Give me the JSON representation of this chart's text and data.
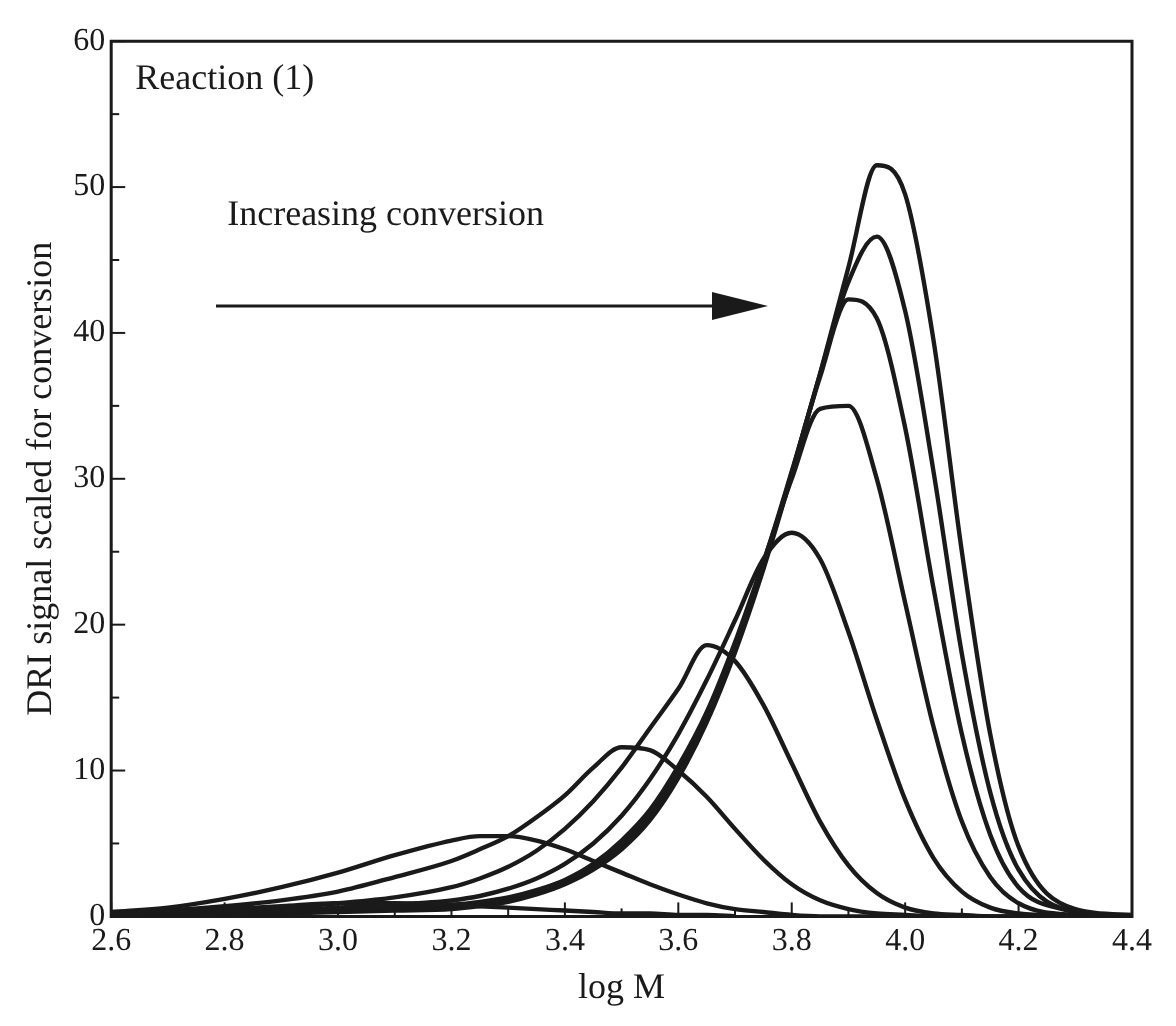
{
  "chart_data": {
    "type": "line",
    "xlabel": "log M",
    "ylabel": "DRI signal scaled for conversion",
    "annotations": [
      "Reaction (1)",
      "Increasing conversion"
    ],
    "x": [
      2.6,
      2.7,
      2.8,
      2.9,
      3.0,
      3.1,
      3.2,
      3.25,
      3.3,
      3.35,
      3.4,
      3.45,
      3.5,
      3.55,
      3.6,
      3.65,
      3.7,
      3.75,
      3.8,
      3.85,
      3.9,
      3.95,
      4.0,
      4.05,
      4.1,
      4.15,
      4.2,
      4.3,
      4.4
    ],
    "series": [
      {
        "color": "#1a1a1a",
        "values": [
          0.2,
          0.3,
          0.5,
          0.7,
          0.9,
          0.9,
          0.8,
          0.7,
          0.6,
          0.5,
          0.4,
          0.3,
          0.2,
          0.2,
          0.1,
          0.1,
          0,
          null,
          null,
          null,
          null,
          null,
          null,
          null,
          null,
          null,
          null,
          null,
          null
        ]
      },
      {
        "color": "#1a1a1a",
        "values": [
          0.3,
          0.6,
          1.2,
          2.0,
          3.0,
          4.2,
          5.2,
          5.5,
          5.5,
          5.2,
          4.6,
          3.8,
          3.0,
          2.2,
          1.5,
          0.9,
          0.5,
          0.3,
          0.1,
          0,
          0,
          0,
          null,
          null,
          null,
          null,
          null,
          null,
          null
        ]
      },
      {
        "color": "#1a1a1a",
        "values": [
          0.2,
          0.4,
          0.7,
          1.1,
          1.7,
          2.7,
          3.8,
          4.6,
          5.5,
          6.8,
          8.3,
          10.2,
          11.6,
          11.4,
          10.0,
          8.2,
          6.0,
          3.9,
          2.2,
          1.1,
          0.5,
          0.2,
          0.1,
          0,
          0,
          0,
          0,
          0,
          0
        ]
      },
      {
        "color": "#1a1a1a",
        "values": [
          0.1,
          0.2,
          0.4,
          0.6,
          0.9,
          1.3,
          2.0,
          2.6,
          3.4,
          4.5,
          6.0,
          7.9,
          10.2,
          12.9,
          15.6,
          18.6,
          17.5,
          14.5,
          10.5,
          6.5,
          3.5,
          1.6,
          0.6,
          0.2,
          0.1,
          0,
          0,
          null,
          null
        ]
      },
      {
        "color": "#1a1a1a",
        "values": [
          0.1,
          0.1,
          0.2,
          0.4,
          0.6,
          0.8,
          1.1,
          1.4,
          1.9,
          2.6,
          3.6,
          5.0,
          6.9,
          9.4,
          12.5,
          16.2,
          20.3,
          24.5,
          26.3,
          24.5,
          19.5,
          13.5,
          8.0,
          4.0,
          1.7,
          0.6,
          0.2,
          0,
          null
        ]
      },
      {
        "color": "#1a1a1a",
        "values": [
          0,
          0.1,
          0.2,
          0.3,
          0.5,
          0.6,
          0.8,
          1.0,
          1.3,
          1.8,
          2.5,
          3.6,
          5.2,
          7.3,
          10.3,
          14.0,
          18.8,
          24.3,
          30.0,
          34.8,
          35.0,
          30.0,
          21.5,
          13.0,
          6.5,
          2.7,
          0.9,
          0.1,
          0
        ]
      },
      {
        "color": "#1a1a1a",
        "values": [
          0,
          0.1,
          0.2,
          0.3,
          0.4,
          0.5,
          0.7,
          0.9,
          1.2,
          1.7,
          2.4,
          3.4,
          4.9,
          7.0,
          9.9,
          13.7,
          18.5,
          24.2,
          30.5,
          37.0,
          42.3,
          41.0,
          33.5,
          22.5,
          12.5,
          5.6,
          2.0,
          0.2,
          null
        ]
      },
      {
        "color": "#1a1a1a",
        "values": [
          0,
          0.1,
          0.2,
          0.3,
          0.4,
          0.5,
          0.6,
          0.8,
          1.1,
          1.6,
          2.3,
          3.3,
          4.7,
          6.8,
          9.7,
          13.5,
          18.3,
          24.0,
          30.4,
          37.2,
          43.5,
          46.6,
          41.5,
          30.5,
          18.0,
          8.5,
          3.2,
          0.3,
          0
        ]
      },
      {
        "color": "#1a1a1a",
        "values": [
          0,
          0.1,
          0.1,
          0.2,
          0.3,
          0.4,
          0.5,
          0.7,
          1.0,
          1.5,
          2.2,
          3.2,
          4.6,
          6.6,
          9.5,
          13.3,
          18.1,
          23.8,
          30.3,
          37.2,
          44.5,
          51.5,
          49.5,
          39.5,
          25.0,
          12.5,
          4.8,
          0.5,
          0.1
        ]
      }
    ],
    "xlim": [
      2.6,
      4.4
    ],
    "xticks": [
      {
        "value": 2.6,
        "label": "2.6"
      },
      {
        "value": 2.8,
        "label": "2.8"
      },
      {
        "value": 3.0,
        "label": "3.0"
      },
      {
        "value": 3.2,
        "label": "3.2"
      },
      {
        "value": 3.4,
        "label": "3.4"
      },
      {
        "value": 3.6,
        "label": "3.6"
      },
      {
        "value": 3.8,
        "label": "3.8"
      },
      {
        "value": 4.0,
        "label": "4.0"
      },
      {
        "value": 4.2,
        "label": "4.2"
      },
      {
        "value": 4.4,
        "label": "4.4"
      }
    ],
    "ylim": [
      0,
      60
    ],
    "yticks": [
      0,
      10,
      20,
      30,
      40,
      50,
      60
    ],
    "grid": false,
    "legend": false,
    "marker": "none",
    "line_style": "solid"
  }
}
